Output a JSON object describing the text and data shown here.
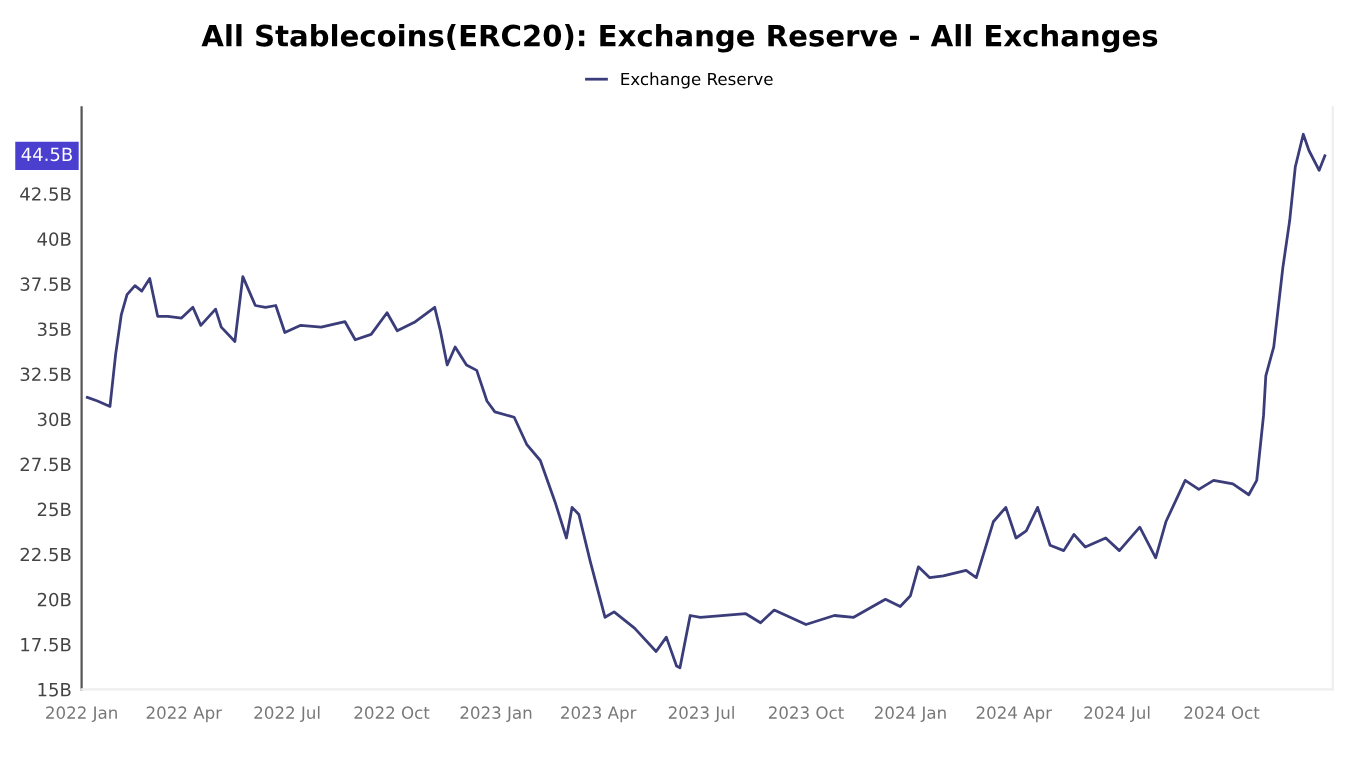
{
  "chart_data": {
    "type": "line",
    "title": "All Stablecoins(ERC20): Exchange Reserve - All Exchanges",
    "x": [
      "2022-01-06",
      "2022-01-15",
      "2022-01-26",
      "2022-01-31",
      "2022-02-05",
      "2022-02-10",
      "2022-02-17",
      "2022-02-23",
      "2022-03-02",
      "2022-03-09",
      "2022-03-18",
      "2022-03-30",
      "2022-04-09",
      "2022-04-16",
      "2022-04-29",
      "2022-05-04",
      "2022-05-16",
      "2022-05-23",
      "2022-06-03",
      "2022-06-12",
      "2022-06-21",
      "2022-06-29",
      "2022-07-13",
      "2022-07-31",
      "2022-08-21",
      "2022-08-30",
      "2022-09-13",
      "2022-09-27",
      "2022-10-06",
      "2022-10-22",
      "2022-11-08",
      "2022-11-13",
      "2022-11-19",
      "2022-11-26",
      "2022-12-06",
      "2022-12-15",
      "2022-12-24",
      "2022-12-31",
      "2023-01-17",
      "2023-01-28",
      "2023-02-09",
      "2023-02-22",
      "2023-03-04",
      "2023-03-09",
      "2023-03-15",
      "2023-03-25",
      "2023-04-07",
      "2023-04-15",
      "2023-05-03",
      "2023-05-22",
      "2023-05-31",
      "2023-06-09",
      "2023-06-12",
      "2023-06-21",
      "2023-06-30",
      "2023-08-09",
      "2023-08-22",
      "2023-09-03",
      "2023-10-01",
      "2023-10-26",
      "2023-11-12",
      "2023-12-10",
      "2023-12-23",
      "2024-01-01",
      "2024-01-08",
      "2024-01-18",
      "2024-01-30",
      "2024-02-19",
      "2024-02-28",
      "2024-03-14",
      "2024-03-25",
      "2024-04-03",
      "2024-04-12",
      "2024-04-22",
      "2024-05-03",
      "2024-05-15",
      "2024-05-24",
      "2024-06-03",
      "2024-06-21",
      "2024-07-03",
      "2024-07-21",
      "2024-08-04",
      "2024-08-13",
      "2024-08-30",
      "2024-09-11",
      "2024-09-24",
      "2024-10-11",
      "2024-10-25",
      "2024-11-01",
      "2024-11-07",
      "2024-11-09",
      "2024-11-16",
      "2024-11-24",
      "2024-11-30",
      "2024-12-05",
      "2024-12-12",
      "2024-12-17",
      "2024-12-26",
      "2024-12-31"
    ],
    "series": [
      {
        "name": "Exchange Reserve",
        "color": "#3b3d7a",
        "values": [
          31.2,
          31.0,
          30.7,
          33.6,
          35.8,
          36.9,
          37.4,
          37.1,
          37.8,
          35.7,
          35.7,
          35.6,
          36.2,
          35.2,
          36.1,
          35.1,
          34.3,
          37.9,
          36.3,
          36.2,
          36.3,
          34.8,
          35.2,
          35.1,
          35.4,
          34.4,
          34.7,
          35.9,
          34.9,
          35.4,
          36.2,
          34.9,
          33.0,
          34.0,
          33.0,
          32.7,
          31.0,
          30.4,
          30.1,
          28.6,
          27.7,
          25.4,
          23.4,
          25.1,
          24.7,
          22.1,
          19.0,
          19.3,
          18.4,
          17.1,
          17.9,
          16.3,
          16.2,
          19.1,
          19.0,
          19.2,
          18.7,
          19.4,
          18.6,
          19.1,
          19.0,
          20.0,
          19.6,
          20.2,
          21.8,
          21.2,
          21.3,
          21.6,
          21.2,
          24.3,
          25.1,
          23.4,
          23.8,
          25.1,
          23.0,
          22.7,
          23.6,
          22.9,
          23.4,
          22.7,
          24.0,
          22.3,
          24.3,
          26.6,
          26.1,
          26.6,
          26.4,
          25.8,
          26.6,
          30.2,
          32.4,
          34.0,
          38.4,
          41.0,
          44.0,
          45.8,
          44.9,
          43.8,
          44.6
        ]
      }
    ],
    "xlim": [
      "2022-01-01",
      "2025-01-07"
    ],
    "xticks": [
      {
        "value": "2022-01-01",
        "label": "2022 Jan"
      },
      {
        "value": "2022-04-01",
        "label": "2022 Apr"
      },
      {
        "value": "2022-07-01",
        "label": "2022 Jul"
      },
      {
        "value": "2022-10-01",
        "label": "2022 Oct"
      },
      {
        "value": "2023-01-01",
        "label": "2023 Jan"
      },
      {
        "value": "2023-04-01",
        "label": "2023 Apr"
      },
      {
        "value": "2023-07-01",
        "label": "2023 Jul"
      },
      {
        "value": "2023-10-01",
        "label": "2023 Oct"
      },
      {
        "value": "2024-01-01",
        "label": "2024 Jan"
      },
      {
        "value": "2024-04-01",
        "label": "2024 Apr"
      },
      {
        "value": "2024-07-01",
        "label": "2024 Jul"
      },
      {
        "value": "2024-10-01",
        "label": "2024 Oct"
      }
    ],
    "ylim": [
      15,
      47.3
    ],
    "yticks": [
      {
        "value": 15,
        "label": "15B"
      },
      {
        "value": 17.5,
        "label": "17.5B"
      },
      {
        "value": 20,
        "label": "20B"
      },
      {
        "value": 22.5,
        "label": "22.5B"
      },
      {
        "value": 25,
        "label": "25B"
      },
      {
        "value": 27.5,
        "label": "27.5B"
      },
      {
        "value": 30,
        "label": "30B"
      },
      {
        "value": 32.5,
        "label": "32.5B"
      },
      {
        "value": 35,
        "label": "35B"
      },
      {
        "value": 37.5,
        "label": "37.5B"
      },
      {
        "value": 40,
        "label": "40B"
      },
      {
        "value": 42.5,
        "label": "42.5B"
      }
    ],
    "annotations": [
      "44.5B"
    ],
    "legend": "top",
    "grid": false,
    "marker": "none",
    "line_style": "solid"
  }
}
